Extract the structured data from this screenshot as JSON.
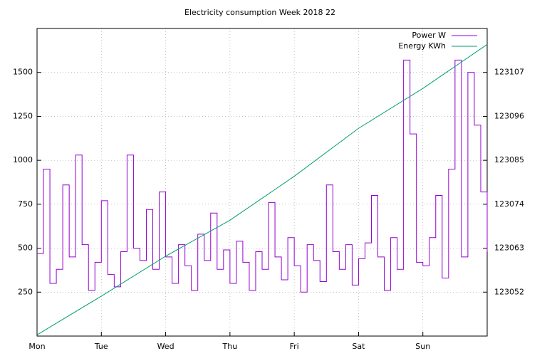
{
  "chart_data": {
    "type": "line",
    "title": "Electricity consumption Week 2018 22",
    "steps": true,
    "grid": true,
    "legend": "top-right",
    "xlim": [
      0,
      7
    ],
    "xticks": [
      {
        "value": 0,
        "label": "Mon"
      },
      {
        "value": 1,
        "label": "Tue"
      },
      {
        "value": 2,
        "label": "Wed"
      },
      {
        "value": 3,
        "label": "Thu"
      },
      {
        "value": 4,
        "label": "Fri"
      },
      {
        "value": 5,
        "label": "Sat"
      },
      {
        "value": 6,
        "label": "Sun"
      }
    ],
    "ylim": [
      0,
      1750
    ],
    "yticks": [
      250,
      500,
      750,
      1000,
      1250,
      1500
    ],
    "y2lim": [
      123041,
      123118
    ],
    "y2ticks": [
      123052,
      123063,
      123074,
      123085,
      123096,
      123107
    ],
    "x": [
      0,
      0.1,
      0.2,
      0.3,
      0.4,
      0.5,
      0.6,
      0.7,
      0.8,
      0.9,
      1,
      1.1,
      1.2,
      1.3,
      1.4,
      1.5,
      1.6,
      1.7,
      1.8,
      1.9,
      2,
      2.1,
      2.2,
      2.3,
      2.4,
      2.5,
      2.6,
      2.7,
      2.8,
      2.9,
      3,
      3.1,
      3.2,
      3.3,
      3.4,
      3.5,
      3.6,
      3.7,
      3.8,
      3.9,
      4,
      4.1,
      4.2,
      4.3,
      4.4,
      4.5,
      4.6,
      4.7,
      4.8,
      4.9,
      5,
      5.1,
      5.2,
      5.3,
      5.4,
      5.5,
      5.6,
      5.7,
      5.8,
      5.9,
      6,
      6.1,
      6.2,
      6.3,
      6.4,
      6.5,
      6.6,
      6.7,
      6.8,
      6.9,
      7
    ],
    "series": [
      {
        "name": "Power W",
        "color": "#9400d3",
        "values": [
          470,
          950,
          300,
          380,
          860,
          450,
          1030,
          520,
          260,
          420,
          770,
          350,
          280,
          480,
          1030,
          500,
          430,
          720,
          380,
          820,
          450,
          300,
          520,
          400,
          260,
          580,
          430,
          700,
          380,
          490,
          300,
          540,
          420,
          260,
          480,
          380,
          760,
          450,
          320,
          560,
          400,
          250,
          520,
          430,
          310,
          860,
          480,
          380,
          520,
          290,
          440,
          530,
          800,
          450,
          260,
          560,
          380,
          1570,
          1150,
          420,
          400,
          560,
          800,
          330,
          950,
          1570,
          450,
          1500,
          1200,
          820,
          480
        ]
      },
      {
        "name": "Energy KWh",
        "color": "#009e73",
        "axis": "y2",
        "x": [
          0,
          1,
          2,
          3,
          4,
          5,
          6,
          7
        ],
        "values": [
          123041.3,
          123051,
          123061,
          123070,
          123081,
          123093,
          123103,
          123114
        ]
      }
    ]
  }
}
